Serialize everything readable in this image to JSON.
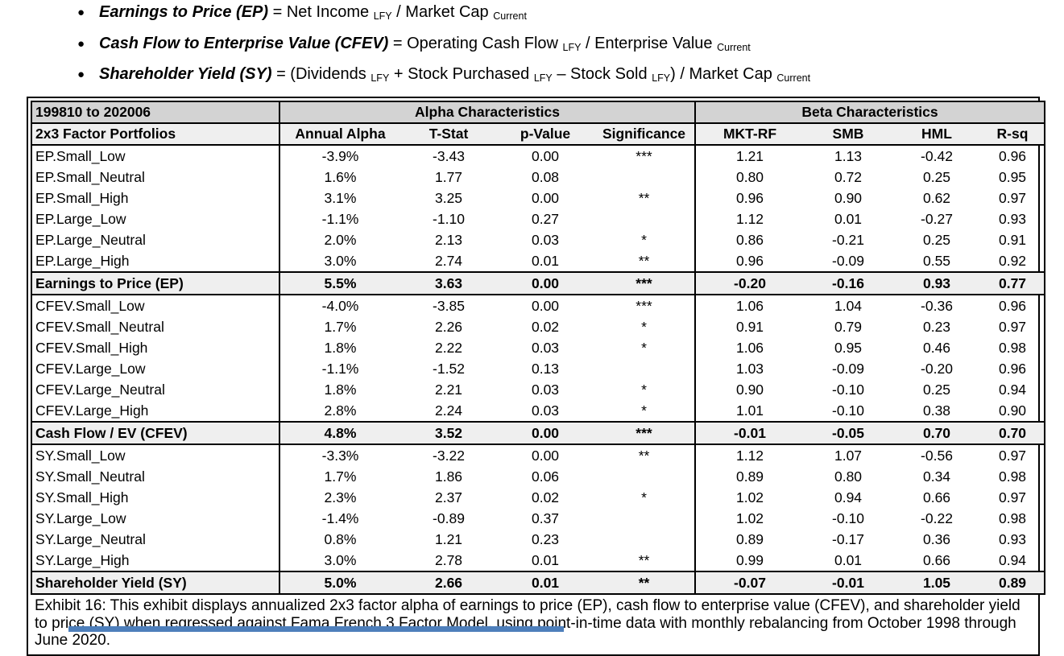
{
  "bullets": [
    {
      "segments": [
        {
          "t": "Earnings to Price (EP)",
          "s": "term"
        },
        {
          "t": " = Net Income ",
          "s": "normal"
        },
        {
          "t": "LFY",
          "s": "sub"
        },
        {
          "t": " / Market Cap ",
          "s": "normal"
        },
        {
          "t": "Current",
          "s": "sub"
        }
      ]
    },
    {
      "segments": [
        {
          "t": "Cash Flow to Enterprise Value (CFEV)",
          "s": "term"
        },
        {
          "t": " = Operating Cash Flow ",
          "s": "normal"
        },
        {
          "t": "LFY",
          "s": "sub"
        },
        {
          "t": " / Enterprise Value ",
          "s": "normal"
        },
        {
          "t": "Current",
          "s": "sub"
        }
      ]
    },
    {
      "segments": [
        {
          "t": "Shareholder Yield (SY)",
          "s": "term"
        },
        {
          "t": " = (Dividends ",
          "s": "normal"
        },
        {
          "t": "LFY",
          "s": "sub"
        },
        {
          "t": " + Stock Purchased ",
          "s": "normal"
        },
        {
          "t": "LFY",
          "s": "sub"
        },
        {
          "t": " – Stock Sold ",
          "s": "normal"
        },
        {
          "t": "LFY",
          "s": "sub"
        },
        {
          "t": ") / Market Cap ",
          "s": "normal"
        },
        {
          "t": "Current",
          "s": "sub"
        }
      ]
    }
  ],
  "table": {
    "period": "199810 to 202006",
    "row_header": "2x3 Factor Portfolios",
    "group_headers": [
      "Alpha Characteristics",
      "Beta Characteristics"
    ],
    "columns": [
      "Annual Alpha",
      "T-Stat",
      "p-Value",
      "Significance",
      "MKT-RF",
      "SMB",
      "HML",
      "R-sq"
    ],
    "sections": [
      {
        "rows": [
          {
            "name": "EP.Small_Low",
            "values": [
              "-3.9%",
              "-3.43",
              "0.00",
              "***",
              "1.21",
              "1.13",
              "-0.42",
              "0.96"
            ]
          },
          {
            "name": "EP.Small_Neutral",
            "values": [
              "1.6%",
              "1.77",
              "0.08",
              "",
              "0.80",
              "0.72",
              "0.25",
              "0.95"
            ]
          },
          {
            "name": "EP.Small_High",
            "values": [
              "3.1%",
              "3.25",
              "0.00",
              "**",
              "0.96",
              "0.90",
              "0.62",
              "0.97"
            ]
          },
          {
            "name": "EP.Large_Low",
            "values": [
              "-1.1%",
              "-1.10",
              "0.27",
              "",
              "1.12",
              "0.01",
              "-0.27",
              "0.93"
            ]
          },
          {
            "name": "EP.Large_Neutral",
            "values": [
              "2.0%",
              "2.13",
              "0.03",
              "*",
              "0.86",
              "-0.21",
              "0.25",
              "0.91"
            ]
          },
          {
            "name": "EP.Large_High",
            "values": [
              "3.0%",
              "2.74",
              "0.01",
              "**",
              "0.96",
              "-0.09",
              "0.55",
              "0.92"
            ]
          }
        ],
        "summary": {
          "name": "Earnings to Price (EP)",
          "values": [
            "5.5%",
            "3.63",
            "0.00",
            "***",
            "-0.20",
            "-0.16",
            "0.93",
            "0.77"
          ]
        }
      },
      {
        "rows": [
          {
            "name": "CFEV.Small_Low",
            "values": [
              "-4.0%",
              "-3.85",
              "0.00",
              "***",
              "1.06",
              "1.04",
              "-0.36",
              "0.96"
            ]
          },
          {
            "name": "CFEV.Small_Neutral",
            "values": [
              "1.7%",
              "2.26",
              "0.02",
              "*",
              "0.91",
              "0.79",
              "0.23",
              "0.97"
            ]
          },
          {
            "name": "CFEV.Small_High",
            "values": [
              "1.8%",
              "2.22",
              "0.03",
              "*",
              "1.06",
              "0.95",
              "0.46",
              "0.98"
            ]
          },
          {
            "name": "CFEV.Large_Low",
            "values": [
              "-1.1%",
              "-1.52",
              "0.13",
              "",
              "1.03",
              "-0.09",
              "-0.20",
              "0.96"
            ]
          },
          {
            "name": "CFEV.Large_Neutral",
            "values": [
              "1.8%",
              "2.21",
              "0.03",
              "*",
              "0.90",
              "-0.10",
              "0.25",
              "0.94"
            ]
          },
          {
            "name": "CFEV.Large_High",
            "values": [
              "2.8%",
              "2.24",
              "0.03",
              "*",
              "1.01",
              "-0.10",
              "0.38",
              "0.90"
            ]
          }
        ],
        "summary": {
          "name": "Cash Flow / EV (CFEV)",
          "values": [
            "4.8%",
            "3.52",
            "0.00",
            "***",
            "-0.01",
            "-0.05",
            "0.70",
            "0.70"
          ]
        }
      },
      {
        "rows": [
          {
            "name": "SY.Small_Low",
            "values": [
              "-3.3%",
              "-3.22",
              "0.00",
              "**",
              "1.12",
              "1.07",
              "-0.56",
              "0.97"
            ]
          },
          {
            "name": "SY.Small_Neutral",
            "values": [
              "1.7%",
              "1.86",
              "0.06",
              "",
              "0.89",
              "0.80",
              "0.34",
              "0.98"
            ]
          },
          {
            "name": "SY.Small_High",
            "values": [
              "2.3%",
              "2.37",
              "0.02",
              "*",
              "1.02",
              "0.94",
              "0.66",
              "0.97"
            ]
          },
          {
            "name": "SY.Large_Low",
            "values": [
              "-1.4%",
              "-0.89",
              "0.37",
              "",
              "1.02",
              "-0.10",
              "-0.22",
              "0.98"
            ]
          },
          {
            "name": "SY.Large_Neutral",
            "values": [
              "0.8%",
              "1.21",
              "0.23",
              "",
              "0.89",
              "-0.17",
              "0.36",
              "0.93"
            ]
          },
          {
            "name": "SY.Large_High",
            "values": [
              "3.0%",
              "2.78",
              "0.01",
              "**",
              "0.99",
              "0.01",
              "0.66",
              "0.94"
            ]
          }
        ],
        "summary": {
          "name": "Shareholder Yield (SY)",
          "values": [
            "5.0%",
            "2.66",
            "0.01",
            "**",
            "-0.07",
            "-0.01",
            "1.05",
            "0.89"
          ]
        }
      }
    ],
    "caption": "Exhibit 16: This exhibit displays annualized 2x3 factor alpha of earnings to price (EP), cash flow to enterprise value (CFEV), and shareholder yield to price (SY) when regressed against Fama French 3 Factor Model, using point-in-time data with monthly rebalancing from October 1998 through June 2020."
  },
  "colors": {
    "group_header_bg": "#d3d3d3",
    "subheader_bg": "#efefef",
    "summary_bg": "#efefef",
    "border": "#000000",
    "bottom_bar": "#4e7fbb"
  }
}
